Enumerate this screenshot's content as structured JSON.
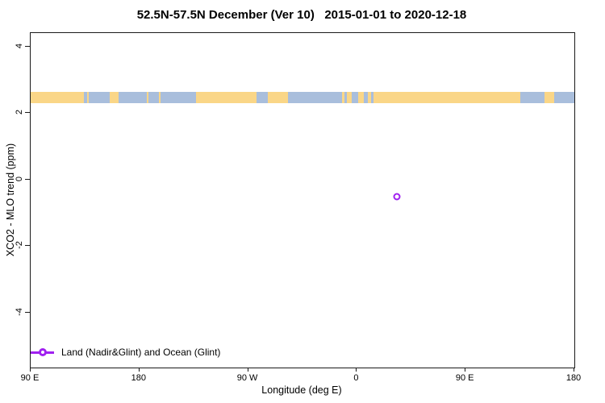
{
  "title": "52.5N-57.5N December (Ver 10)   2015-01-01 to 2020-12-18",
  "chart_data": {
    "type": "scatter",
    "title": "52.5N-57.5N December (Ver 10)   2015-01-01 to 2020-12-18",
    "xlabel": "Longitude (deg E)",
    "ylabel": "XCO2 - MLO trend (ppm)",
    "xlim": [
      90,
      540
    ],
    "ylim": [
      -5.65,
      4.41
    ],
    "grid": false,
    "x_ticks": [
      {
        "value": 90,
        "label": "90 E"
      },
      {
        "value": 180,
        "label": "180"
      },
      {
        "value": 270,
        "label": "90 W"
      },
      {
        "value": 360,
        "label": "0"
      },
      {
        "value": 450,
        "label": "90 E"
      },
      {
        "value": 540,
        "label": "180"
      }
    ],
    "y_ticks": [
      {
        "value": 4,
        "label": "4"
      },
      {
        "value": 2,
        "label": "2"
      },
      {
        "value": 0,
        "label": "0"
      },
      {
        "value": -2,
        "label": "-2"
      },
      {
        "value": -4,
        "label": "-4"
      }
    ],
    "series": [
      {
        "name": "Land (Nadir&Glint) and Ocean (Glint)",
        "marker": "open-circle",
        "color": "#A020F0",
        "points": [
          {
            "x": 393,
            "y": -0.51
          }
        ]
      }
    ],
    "legend": {
      "label": "Land (Nadir&Glint) and Ocean (Glint)",
      "color": "#A020F0",
      "position": "bottom-left"
    },
    "surface_band": {
      "description": "land/ocean surface type strip along latitude band",
      "y_center": 2.47,
      "y_half_height": 0.17,
      "colors": {
        "land": "#FAD687",
        "ocean": "#A9BEDC"
      },
      "segments": [
        {
          "type": "land",
          "from": 90,
          "to": 134
        },
        {
          "type": "ocean",
          "from": 134,
          "to": 136.5
        },
        {
          "type": "land",
          "from": 136.5,
          "to": 138
        },
        {
          "type": "ocean",
          "from": 138,
          "to": 155.5
        },
        {
          "type": "land",
          "from": 155.5,
          "to": 163
        },
        {
          "type": "ocean",
          "from": 163,
          "to": 186
        },
        {
          "type": "land",
          "from": 186,
          "to": 187.5
        },
        {
          "type": "ocean",
          "from": 187.5,
          "to": 196
        },
        {
          "type": "land",
          "from": 196,
          "to": 197.5
        },
        {
          "type": "ocean",
          "from": 197.5,
          "to": 227
        },
        {
          "type": "land",
          "from": 227,
          "to": 277
        },
        {
          "type": "ocean",
          "from": 277,
          "to": 286
        },
        {
          "type": "land",
          "from": 286,
          "to": 303
        },
        {
          "type": "ocean",
          "from": 303,
          "to": 348
        },
        {
          "type": "land",
          "from": 348,
          "to": 350
        },
        {
          "type": "ocean",
          "from": 350,
          "to": 351.5
        },
        {
          "type": "land",
          "from": 351.5,
          "to": 356
        },
        {
          "type": "ocean",
          "from": 356,
          "to": 361
        },
        {
          "type": "land",
          "from": 361,
          "to": 366
        },
        {
          "type": "ocean",
          "from": 366,
          "to": 369
        },
        {
          "type": "land",
          "from": 369,
          "to": 372
        },
        {
          "type": "ocean",
          "from": 372,
          "to": 374
        },
        {
          "type": "land",
          "from": 374,
          "to": 495
        },
        {
          "type": "ocean",
          "from": 495,
          "to": 515.5
        },
        {
          "type": "land",
          "from": 515.5,
          "to": 523
        },
        {
          "type": "ocean",
          "from": 523,
          "to": 540
        }
      ]
    }
  }
}
